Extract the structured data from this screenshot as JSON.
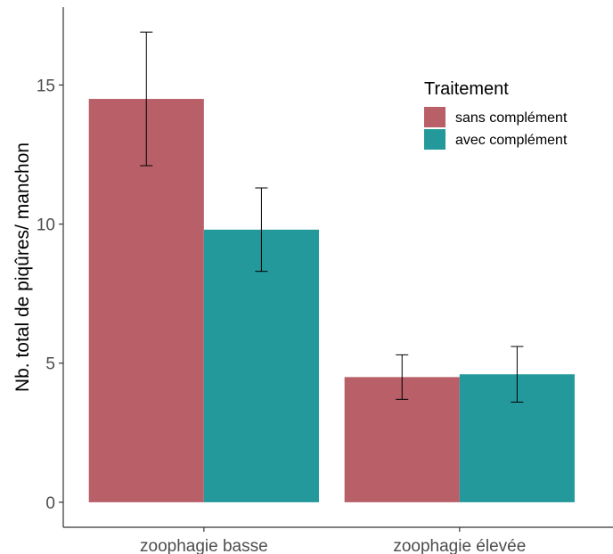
{
  "chart_data": {
    "type": "bar",
    "categories": [
      "zoophagie basse",
      "zoophagie élevée"
    ],
    "series": [
      {
        "name": "sans complément",
        "color": "#b85f68",
        "values": [
          14.5,
          4.5
        ],
        "error_low": [
          12.1,
          3.7
        ],
        "error_high": [
          16.9,
          5.3
        ]
      },
      {
        "name": "avec complément",
        "color": "#24999c",
        "values": [
          9.8,
          4.6
        ],
        "error_low": [
          8.3,
          3.6
        ],
        "error_high": [
          11.3,
          5.6
        ]
      }
    ],
    "ylabel": "Nb. total de piqûres/ manchon",
    "xlabel": "",
    "ylim": [
      -0.9,
      17.8
    ],
    "yticks": [
      0,
      5,
      10,
      15
    ],
    "legend": {
      "title": "Traitement",
      "position": "top-right"
    },
    "grid": false
  }
}
